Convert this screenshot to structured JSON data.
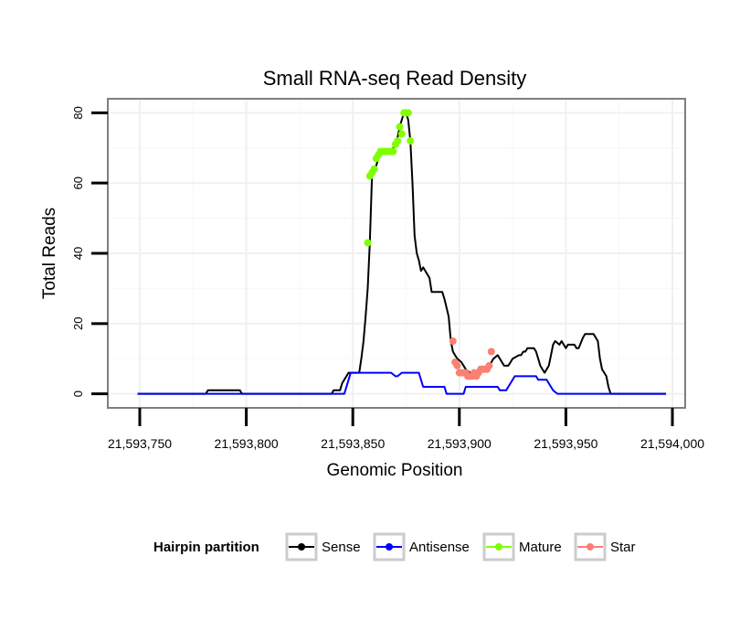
{
  "chart_data": {
    "type": "line",
    "title": "Small RNA-seq Read Density",
    "xlabel": "Genomic Position",
    "ylabel": "Total Reads",
    "xlim": [
      21593735,
      21594006
    ],
    "ylim": [
      -4,
      84
    ],
    "x_ticks": [
      21593750,
      21593800,
      21593850,
      21593900,
      21593950,
      21594000
    ],
    "x_tick_labels": [
      "21,593,750",
      "21,593,800",
      "21,593,850",
      "21,593,900",
      "21,593,950",
      "21,594,000"
    ],
    "y_ticks": [
      0,
      20,
      40,
      60,
      80
    ],
    "y_tick_labels": [
      "0",
      "20",
      "40",
      "60",
      "80"
    ],
    "grid": true,
    "legend": {
      "title": "Hairpin partition",
      "position": "bottom",
      "entries": [
        "Sense",
        "Antisense",
        "Mature",
        "Star"
      ]
    },
    "colors": {
      "Sense": "#000000",
      "Antisense": "#0000ff",
      "Mature": "#7fff00",
      "Star": "#fa8072"
    },
    "series": [
      {
        "name": "Sense",
        "style": "line",
        "x": [
          21593749,
          21593781,
          21593782,
          21593797,
          21593798,
          21593840,
          21593841,
          21593844,
          21593845,
          21593848,
          21593849,
          21593853,
          21593854,
          21593855,
          21593856,
          21593857,
          21593858,
          21593859,
          21593860,
          21593861,
          21593862,
          21593863,
          21593864,
          21593866,
          21593868,
          21593869,
          21593870,
          21593871,
          21593872,
          21593873,
          21593874,
          21593875,
          21593876,
          21593877,
          21593878,
          21593879,
          21593880,
          21593881,
          21593882,
          21593883,
          21593884,
          21593886,
          21593887,
          21593892,
          21593893,
          21593895,
          21593896,
          21593897,
          21593898,
          21593899,
          21593901,
          21593903,
          21593905,
          21593907,
          21593910,
          21593912,
          21593914,
          21593915,
          21593916,
          21593918,
          21593919,
          21593921,
          21593923,
          21593924,
          21593925,
          21593928,
          21593929,
          21593930,
          21593931,
          21593932,
          21593933,
          21593935,
          21593936,
          21593937,
          21593938,
          21593939,
          21593940,
          21593941,
          21593942,
          21593943,
          21593944,
          21593945,
          21593947,
          21593948,
          21593949,
          21593950,
          21593951,
          21593952,
          21593953,
          21593954,
          21593955,
          21593956,
          21593958,
          21593959,
          21593960,
          21593962,
          21593963,
          21593964,
          21593965,
          21593966,
          21593967,
          21593968,
          21593969,
          21593970,
          21593971,
          21593985,
          21593997
        ],
        "y": [
          0,
          0,
          1,
          1,
          0,
          0,
          1,
          1,
          3,
          6,
          6,
          6,
          10,
          15,
          22,
          30,
          43,
          62,
          63,
          65,
          67,
          68,
          69,
          69,
          69,
          70,
          71,
          73,
          76,
          78,
          80,
          80,
          78,
          72,
          60,
          45,
          40,
          38,
          35,
          36,
          35,
          33,
          29,
          29,
          27,
          22,
          15,
          12,
          11,
          10,
          9,
          7,
          6,
          6,
          7,
          7,
          8,
          9,
          10,
          11,
          10,
          8,
          8,
          9,
          10,
          11,
          11,
          12,
          12,
          13,
          13,
          13,
          12,
          10,
          8,
          7,
          6,
          7,
          8,
          11,
          14,
          15,
          14,
          15,
          14,
          13,
          14,
          14,
          14,
          14,
          13,
          13,
          16,
          17,
          17,
          17,
          17,
          16,
          15,
          10,
          7,
          6,
          5,
          2,
          0,
          0,
          0
        ]
      },
      {
        "name": "Antisense",
        "style": "line",
        "x": [
          21593749,
          21593846,
          21593849,
          21593868,
          21593870,
          21593871,
          21593873,
          21593881,
          21593882,
          21593883,
          21593893,
          21593894,
          21593902,
          21593903,
          21593904,
          21593918,
          21593919,
          21593922,
          21593923,
          21593924,
          21593925,
          21593926,
          21593936,
          21593937,
          21593941,
          21593942,
          21593943,
          21593944,
          21593946,
          21593947,
          21593997
        ],
        "y": [
          0,
          0,
          6,
          6,
          5,
          5,
          6,
          6,
          4,
          2,
          2,
          0,
          0,
          2,
          2,
          2,
          1,
          1,
          2,
          3,
          4,
          5,
          5,
          4,
          4,
          3,
          2,
          1,
          0,
          0,
          0
        ]
      },
      {
        "name": "Mature",
        "style": "points",
        "x": [
          21593857,
          21593858,
          21593859,
          21593860,
          21593861,
          21593862,
          21593863,
          21593864,
          21593865,
          21593866,
          21593867,
          21593868,
          21593869,
          21593870,
          21593871,
          21593872,
          21593873,
          21593874,
          21593875,
          21593876,
          21593877
        ],
        "y": [
          43,
          62,
          63,
          64,
          67,
          68,
          69,
          69,
          69,
          69,
          69,
          69,
          69,
          71,
          72,
          76,
          74,
          80,
          80,
          80,
          72
        ]
      },
      {
        "name": "Star",
        "style": "points",
        "x": [
          21593897,
          21593898,
          21593899,
          21593900,
          21593901,
          21593902,
          21593903,
          21593904,
          21593905,
          21593906,
          21593907,
          21593908,
          21593909,
          21593910,
          21593911,
          21593912,
          21593913,
          21593914,
          21593915
        ],
        "y": [
          15,
          9,
          8,
          6,
          6,
          6,
          6,
          5,
          5,
          5,
          6,
          5,
          6,
          7,
          7,
          7,
          7,
          8,
          12
        ]
      }
    ]
  }
}
